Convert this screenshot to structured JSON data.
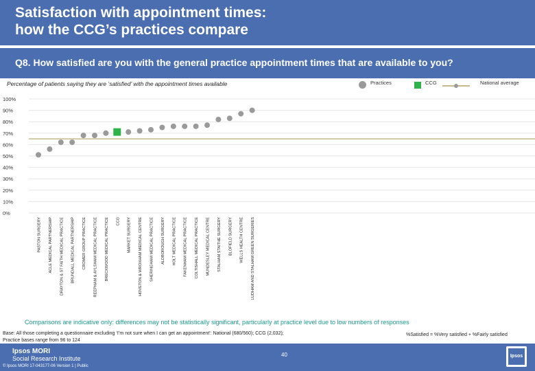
{
  "header": {
    "title_line1": "Satisfaction with appointment times:",
    "title_line2": "how the CCG’s practices compare",
    "question": "Q8. How satisfied are you with the general practice appointment times that are available to you?",
    "subtitle": "Percentage of patients saying they are ‘satisfied’ with the appointment times available"
  },
  "legend": {
    "practices": "Practices",
    "ccg": "CCG",
    "national": "National average"
  },
  "colors": {
    "band": "#4a6eb0",
    "practice_dot": "#9a9a9a",
    "ccg_square": "#2db34a",
    "national_line": "#c8b98c",
    "caveat_text": "#1a9a8a"
  },
  "chart_data": {
    "type": "scatter",
    "title": "Percentage of patients saying they are ‘satisfied’ with the appointment times available",
    "ylim": [
      0,
      100
    ],
    "yticks": [
      "0%",
      "10%",
      "20%",
      "30%",
      "40%",
      "50%",
      "60%",
      "70%",
      "80%",
      "90%",
      "100%"
    ],
    "national_average": 65,
    "categories": [
      "PASTON SURGERY",
      "ACLE MEDICAL PARTNERSHIP",
      "DRAYTON & ST FAITH MEDICAL PRACTICE",
      "BRUNDALL MEDICAL PARTNERSHIP",
      "CROMER GROUP PRACTICE",
      "REEPHAM & AYLSHAM MEDICAL PRACTICE",
      "BRECKWOOD MEDICAL PRACTICE",
      "CCG",
      "MARKET SURGERY",
      "HOVETON & WROXHAM MEDICAL CENTRE",
      "SHERINGHAM MEDICAL PRACTICE",
      "ALDBOROUGH SURGERY",
      "HOLT MEDICAL PRACTICE",
      "FAKENHAM MEDICAL PRACTICE",
      "COLTISHALL MEDICAL PRACTICE",
      "MUNDESLEY MEDICAL CENTRE",
      "STALHAM STAITHE SURGERY",
      "BLOFIELD SURGERY",
      "WELLS HEALTH CENTRE",
      "LUDHAM AND STALHAM GREEN SURGERIES"
    ],
    "values": [
      51,
      56,
      62,
      62,
      68,
      68,
      70,
      71,
      71,
      72,
      73,
      75,
      76,
      76,
      76,
      77,
      82,
      83,
      87,
      90
    ],
    "ccg_index": 7
  },
  "notes": {
    "caveat": "Comparisons are indicative only: differences may not be statistically significant, particularly at practice level due to low numbers of responses",
    "base_line1": "Base: All those completing a questionnaire excluding ‘I’m not sure when I can get an appointment’: National (680/560); CCG (2,032);",
    "base_line2": "Practice bases range from 96 to 124",
    "satisfied_def": "%Satisfied = %Very satisfied + %Fairly satisfied"
  },
  "footer": {
    "logo_line1": "Ipsos MORI",
    "logo_line2": "Social Research Institute",
    "page_number": "40",
    "copyright": "© Ipsos MORI     17-043177-06 Version 1 | Public",
    "ipsos_mark": "Ipsos"
  }
}
